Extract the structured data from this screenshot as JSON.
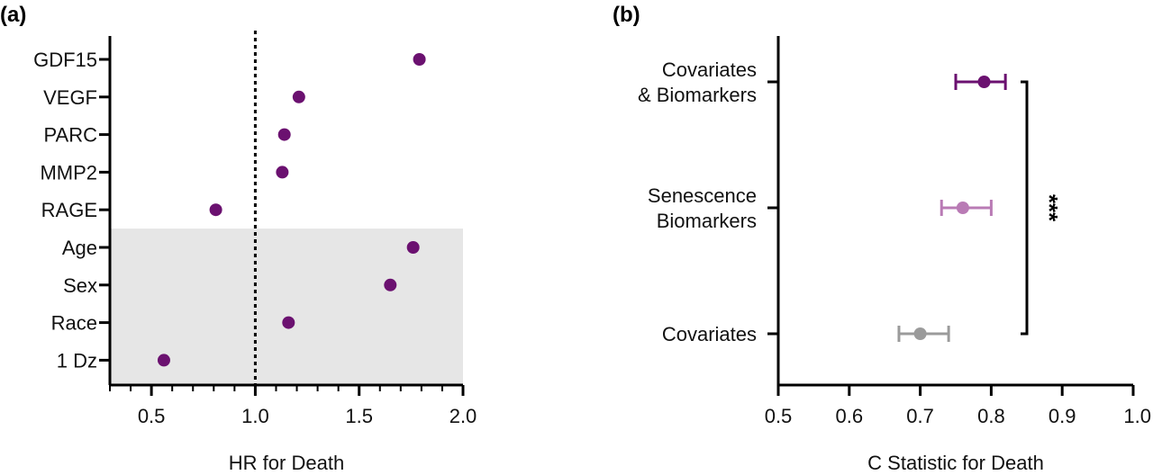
{
  "colors": {
    "purple_dark": "#6b1170",
    "purple_light": "#b97bb5",
    "grey": "#9b9b9b",
    "shade": "#e6e6e6",
    "axis": "#000000"
  },
  "chart_data": [
    {
      "type": "scatter",
      "panel_label": "(a)",
      "title": "",
      "xlabel": "HR for Death",
      "ylabel": "",
      "xlim": [
        0.3,
        2.0
      ],
      "xticks": [
        "0.5",
        "1.0",
        "1.5",
        "2.0"
      ],
      "reference_line_x": 1.0,
      "shaded_group": [
        "Age",
        "Sex",
        "Race",
        "1 Dz"
      ],
      "categories": [
        "GDF15",
        "VEGF",
        "PARC",
        "MMP2",
        "RAGE",
        "Age",
        "Sex",
        "Race",
        "1 Dz"
      ],
      "values": [
        1.79,
        1.21,
        1.14,
        1.13,
        0.81,
        1.76,
        1.65,
        1.16,
        0.56
      ]
    },
    {
      "type": "scatter",
      "panel_label": "(b)",
      "title": "",
      "xlabel": "C Statistic for Death",
      "ylabel": "",
      "xlim": [
        0.5,
        1.0
      ],
      "xticks": [
        "0.5",
        "0.6",
        "0.7",
        "0.8",
        "0.9",
        "1.0"
      ],
      "categories": [
        {
          "lines": [
            "Covariates",
            "& Biomarkers"
          ]
        },
        {
          "lines": [
            "Senescence",
            "Biomarkers"
          ]
        },
        {
          "lines": [
            "Covariates"
          ]
        }
      ],
      "series": [
        {
          "name": "Covariates & Biomarkers",
          "value": 0.79,
          "ci_low": 0.75,
          "ci_high": 0.82,
          "color": "#6b1170"
        },
        {
          "name": "Senescence Biomarkers",
          "value": 0.76,
          "ci_low": 0.73,
          "ci_high": 0.8,
          "color": "#b97bb5"
        },
        {
          "name": "Covariates",
          "value": 0.7,
          "ci_low": 0.67,
          "ci_high": 0.74,
          "color": "#9b9b9b"
        }
      ],
      "significance": "***"
    }
  ]
}
